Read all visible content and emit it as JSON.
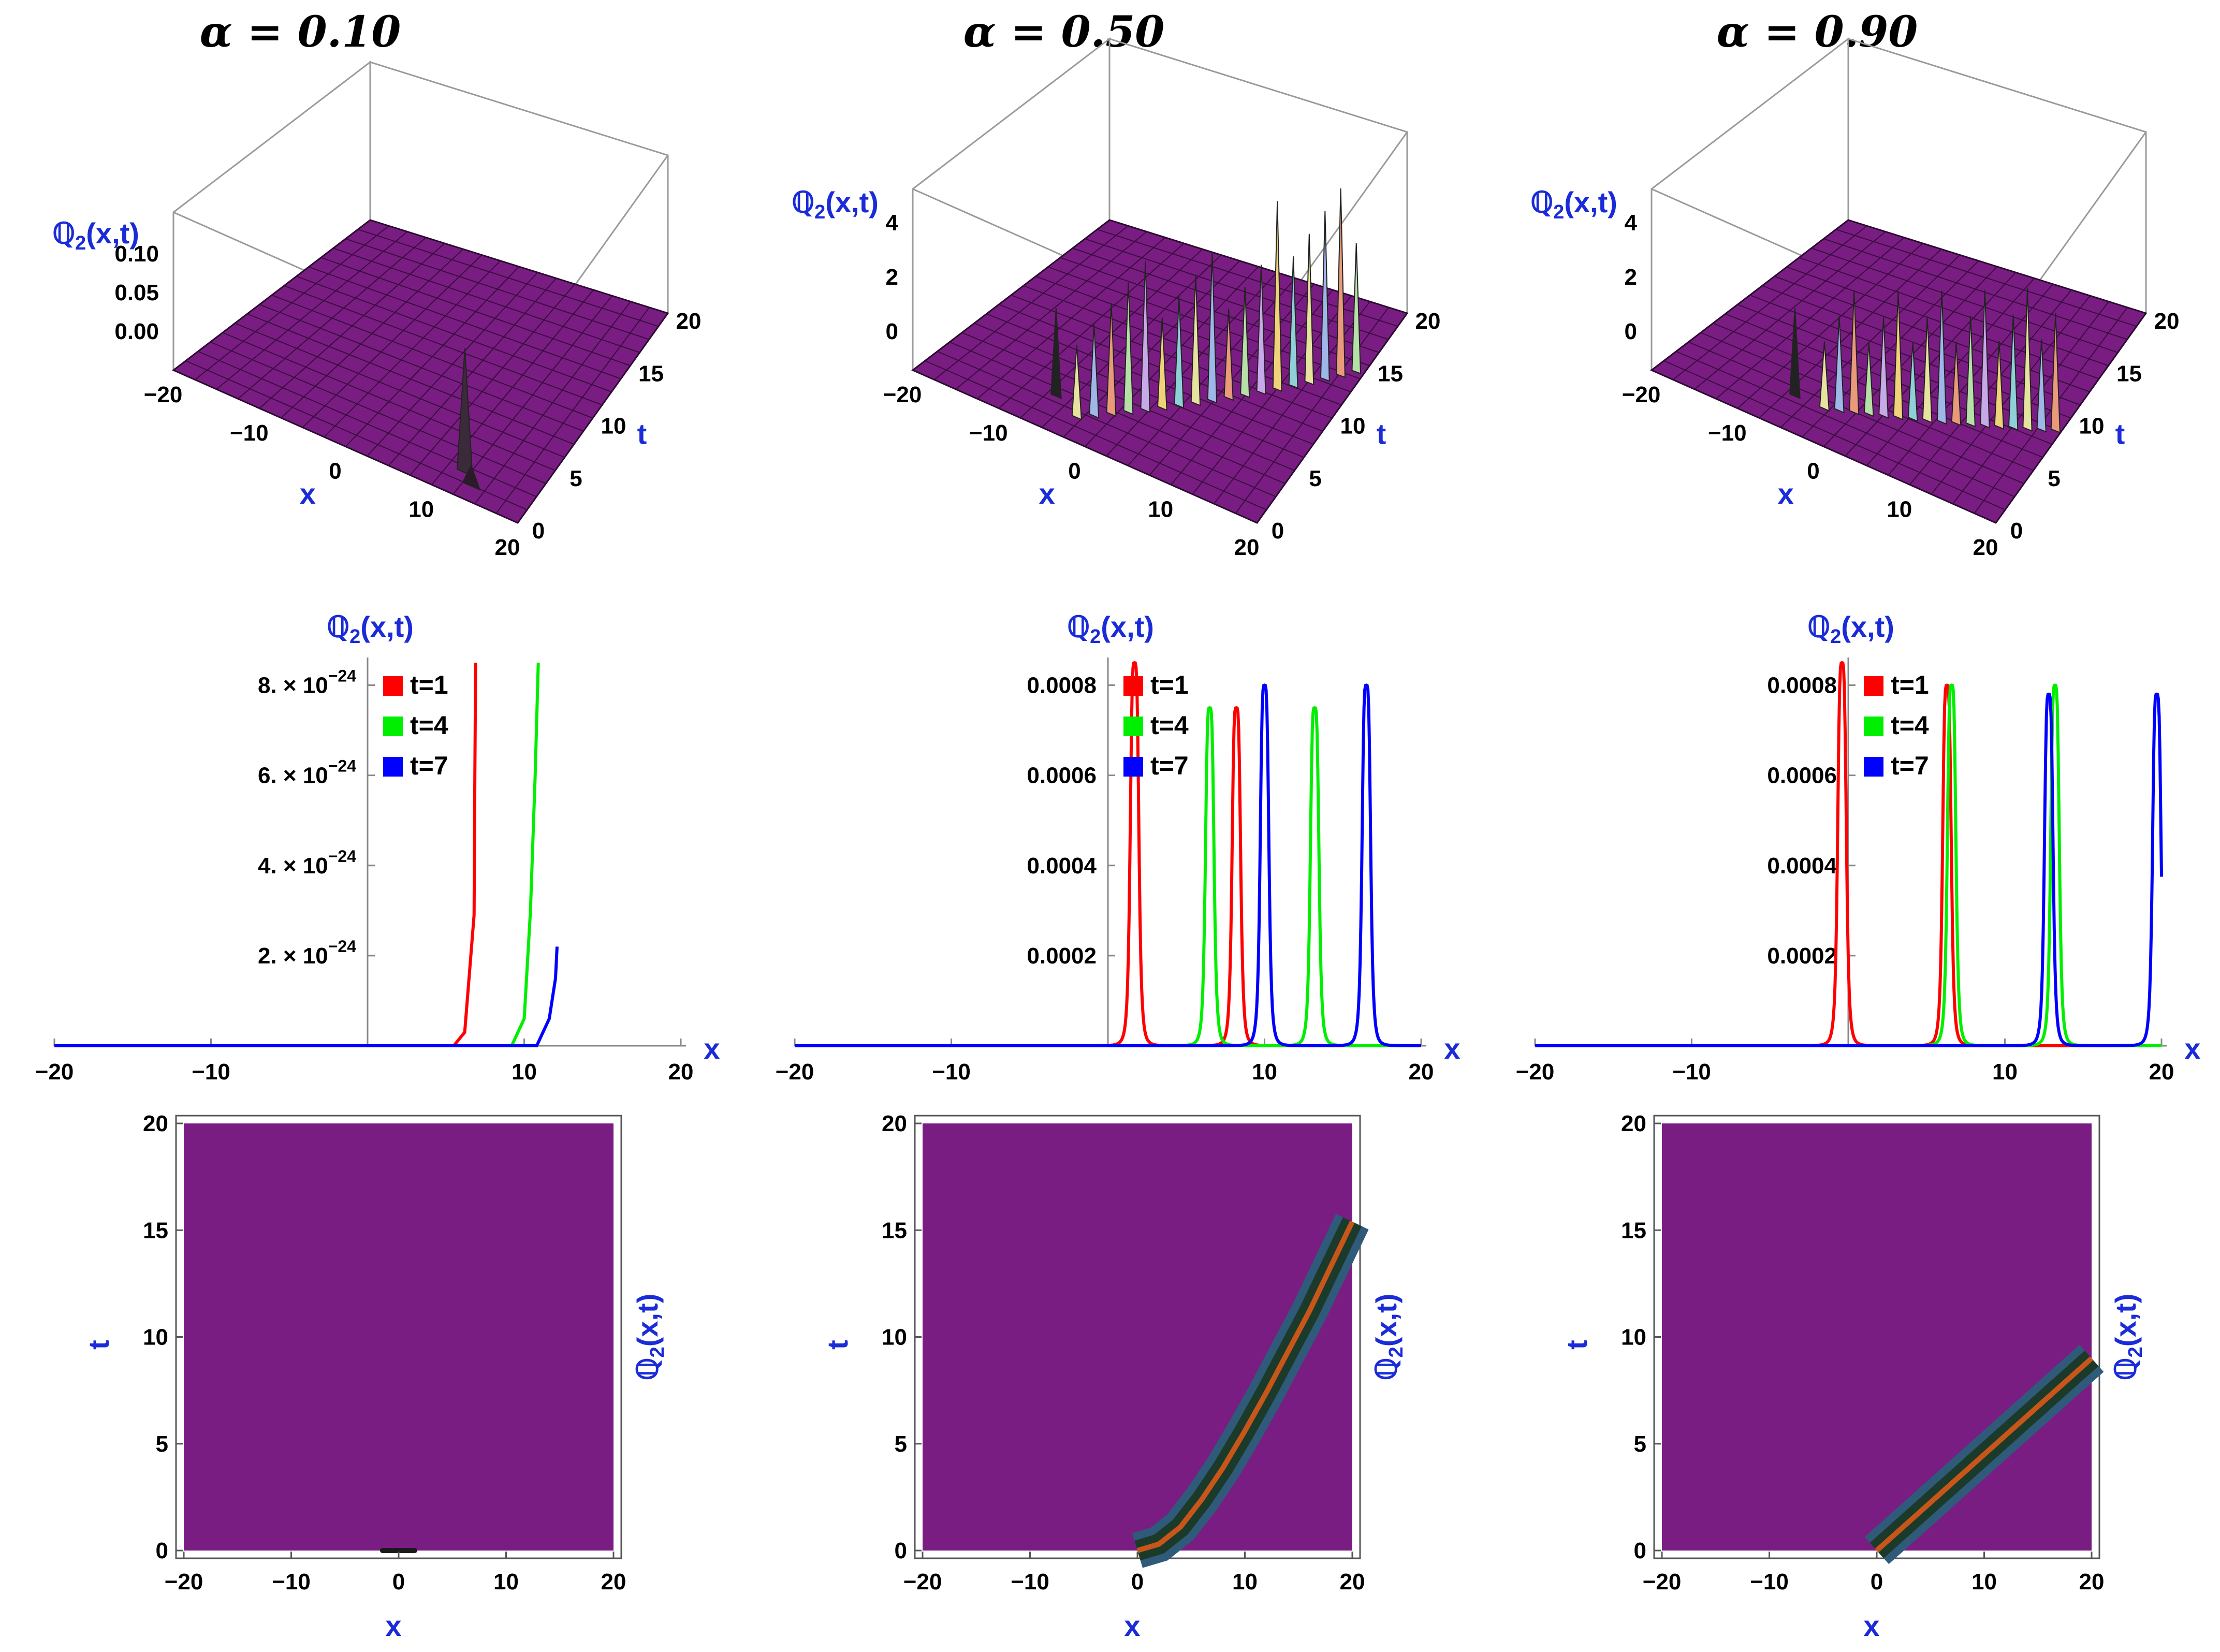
{
  "titles": [
    "α = 0.10",
    "α = 0.50",
    "α = 0.90"
  ],
  "labels": {
    "x": "x",
    "t": "t",
    "q": "ℚ2(x,t)"
  },
  "colors": {
    "surface": "#7a1d82",
    "axis_label": "#1a2bd8",
    "t1": "#ff0000",
    "t4": "#00ee00",
    "t7": "#0000ff"
  },
  "chart_data": [
    {
      "type": "surface",
      "alpha": 0.1,
      "title": "α = 0.10",
      "xlabel": "x",
      "ylabel": "t",
      "zlabel": "ℚ2(x,t)",
      "xlim": [
        -20,
        20
      ],
      "tlim": [
        0,
        20
      ],
      "x_ticks": [
        "-20",
        "-10",
        "0",
        "10",
        "20"
      ],
      "t_ticks": [
        "0",
        "5",
        "10",
        "15",
        "20"
      ],
      "z_ticks": [
        "0.00",
        "0.05",
        "0.10"
      ],
      "peak": {
        "x": 12,
        "t": 2,
        "z": 0.08
      }
    },
    {
      "type": "surface",
      "alpha": 0.5,
      "title": "α = 0.50",
      "xlabel": "x",
      "ylabel": "t",
      "zlabel": "ℚ2(x,t)",
      "xlim": [
        -20,
        20
      ],
      "tlim": [
        0,
        20
      ],
      "x_ticks": [
        "-20",
        "-10",
        "0",
        "10",
        "20"
      ],
      "t_ticks": [
        "0",
        "5",
        "10",
        "15",
        "20"
      ],
      "z_ticks": [
        "0",
        "2",
        "4"
      ]
    },
    {
      "type": "surface",
      "alpha": 0.9,
      "title": "α = 0.90",
      "xlabel": "x",
      "ylabel": "t",
      "zlabel": "ℚ2(x,t)",
      "xlim": [
        -20,
        20
      ],
      "tlim": [
        0,
        20
      ],
      "x_ticks": [
        "-20",
        "-10",
        "0",
        "10",
        "20"
      ],
      "t_ticks": [
        "0",
        "5",
        "10",
        "15",
        "20"
      ],
      "z_ticks": [
        "0",
        "2",
        "4"
      ]
    },
    {
      "type": "line",
      "alpha": 0.1,
      "xlabel": "x",
      "ylabel": "ℚ2(x,t)",
      "xlim": [
        -20,
        20
      ],
      "ylim": [
        0,
        8.5e-24
      ],
      "x_ticks": [
        -20,
        -10,
        10,
        20
      ],
      "y_ticks": [
        {
          "v": 2e-24,
          "mant": "2.",
          "exp": "−24"
        },
        {
          "v": 4e-24,
          "mant": "4.",
          "exp": "−24"
        },
        {
          "v": 6e-24,
          "mant": "6.",
          "exp": "−24"
        },
        {
          "v": 8e-24,
          "mant": "8.",
          "exp": "−24"
        }
      ],
      "legend": [
        "t=1",
        "t=4",
        "t=7"
      ],
      "series": [
        {
          "name": "t=1",
          "color": "#ff0000",
          "x": [
            -20,
            5.5,
            6.2,
            6.8,
            6.85,
            6.9
          ],
          "y": [
            0,
            0,
            3e-25,
            2.9e-24,
            6e-24,
            8.5e-24
          ]
        },
        {
          "name": "t=4",
          "color": "#00ee00",
          "x": [
            -20,
            9.2,
            10.0,
            10.4,
            10.7,
            10.9
          ],
          "y": [
            0,
            0,
            6e-25,
            3e-24,
            6e-24,
            8.5e-24
          ]
        },
        {
          "name": "t=7",
          "color": "#0000ff",
          "x": [
            -20,
            10.8,
            11.6,
            12.0,
            12.1
          ],
          "y": [
            0,
            0,
            6e-25,
            1.5e-24,
            2.2e-24
          ]
        }
      ]
    },
    {
      "type": "line",
      "alpha": 0.5,
      "xlabel": "x",
      "ylabel": "ℚ2(x,t)",
      "xlim": [
        -20,
        20
      ],
      "ylim": [
        0,
        0.00085
      ],
      "x_ticks": [
        -20,
        -10,
        10,
        20
      ],
      "y_ticks": [
        {
          "v": 0.0002,
          "text": "0.0002"
        },
        {
          "v": 0.0004,
          "text": "0.0004"
        },
        {
          "v": 0.0006,
          "text": "0.0006"
        },
        {
          "v": 0.0008,
          "text": "0.0008"
        }
      ],
      "legend": [
        "t=1",
        "t=4",
        "t=7"
      ],
      "series": [
        {
          "name": "t=1",
          "color": "#ff0000",
          "peaks": [
            {
              "x0": 1.7,
              "h": 0.00085
            },
            {
              "x0": 8.2,
              "h": 0.00075
            }
          ],
          "w": 0.35
        },
        {
          "name": "t=4",
          "color": "#00ee00",
          "peaks": [
            {
              "x0": 6.5,
              "h": 0.00075
            },
            {
              "x0": 13.2,
              "h": 0.00075
            }
          ],
          "w": 0.35
        },
        {
          "name": "t=7",
          "color": "#0000ff",
          "peaks": [
            {
              "x0": 10.0,
              "h": 0.0008
            },
            {
              "x0": 16.5,
              "h": 0.0008
            }
          ],
          "w": 0.35
        }
      ]
    },
    {
      "type": "line",
      "alpha": 0.9,
      "xlabel": "x",
      "ylabel": "ℚ2(x,t)",
      "xlim": [
        -20,
        20
      ],
      "ylim": [
        0,
        0.00085
      ],
      "x_ticks": [
        -20,
        -10,
        10,
        20
      ],
      "y_ticks": [
        {
          "v": 0.0002,
          "text": "0.0002"
        },
        {
          "v": 0.0004,
          "text": "0.0004"
        },
        {
          "v": 0.0006,
          "text": "0.0006"
        },
        {
          "v": 0.0008,
          "text": "0.0008"
        }
      ],
      "legend": [
        "t=1",
        "t=4",
        "t=7"
      ],
      "series": [
        {
          "name": "t=1",
          "color": "#ff0000",
          "peaks": [
            {
              "x0": -0.4,
              "h": 0.00085
            },
            {
              "x0": 6.3,
              "h": 0.0008
            }
          ],
          "w": 0.35
        },
        {
          "name": "t=4",
          "color": "#00ee00",
          "peaks": [
            {
              "x0": 6.6,
              "h": 0.0008
            },
            {
              "x0": 13.2,
              "h": 0.0008
            }
          ],
          "w": 0.35
        },
        {
          "name": "t=7",
          "color": "#0000ff",
          "peaks": [
            {
              "x0": 12.8,
              "h": 0.00078
            },
            {
              "x0": 19.7,
              "h": 0.00078
            }
          ],
          "w": 0.35
        }
      ]
    },
    {
      "type": "heatmap",
      "alpha": 0.1,
      "xlabel": "x",
      "ylabel": "t",
      "colorbar_label": "ℚ2(x,t)",
      "xlim": [
        -20,
        20
      ],
      "ylim": [
        0,
        20
      ],
      "x_ticks": [
        -20,
        -10,
        0,
        10,
        20
      ],
      "y_ticks": [
        0,
        5,
        10,
        15,
        20
      ],
      "ridge": {
        "x": [
          -1.5,
          1.5
        ],
        "t": [
          0,
          0
        ]
      }
    },
    {
      "type": "heatmap",
      "alpha": 0.5,
      "xlabel": "x",
      "ylabel": "t",
      "colorbar_label": "ℚ2(x,t)",
      "xlim": [
        -20,
        20
      ],
      "ylim": [
        0,
        20
      ],
      "x_ticks": [
        -20,
        -10,
        0,
        10,
        20
      ],
      "y_ticks": [
        0,
        5,
        10,
        15,
        20
      ],
      "ridge": {
        "x": [
          0,
          2,
          4,
          6,
          8,
          10,
          12,
          14,
          16,
          18,
          20
        ],
        "t": [
          0,
          0.3,
          1.1,
          2.4,
          3.9,
          5.6,
          7.4,
          9.3,
          11.2,
          13.3,
          15.4
        ]
      }
    },
    {
      "type": "heatmap",
      "alpha": 0.9,
      "xlabel": "x",
      "ylabel": "t",
      "colorbar_label": "ℚ2(x,t)",
      "xlim": [
        -20,
        20
      ],
      "ylim": [
        0,
        20
      ],
      "x_ticks": [
        -20,
        -10,
        0,
        10,
        20
      ],
      "y_ticks": [
        0,
        5,
        10,
        15,
        20
      ],
      "ridge": {
        "x": [
          0,
          2,
          4,
          6,
          8,
          10,
          12,
          14,
          16,
          18,
          20
        ],
        "t": [
          0,
          0.9,
          1.8,
          2.7,
          3.6,
          4.5,
          5.4,
          6.3,
          7.2,
          8.1,
          9.0
        ]
      }
    }
  ]
}
